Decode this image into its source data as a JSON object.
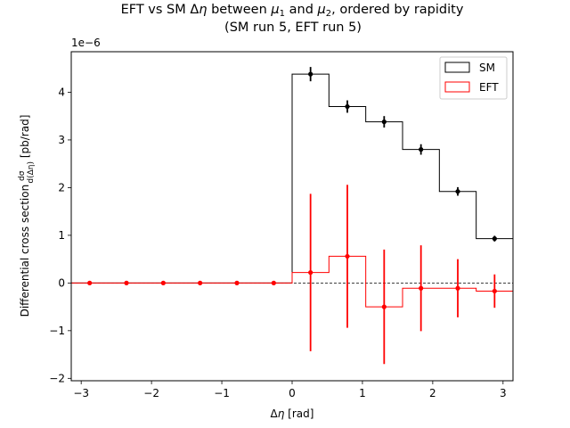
{
  "chart_data": {
    "type": "step-histogram",
    "title": "EFT vs SM Δη between μ1 and μ2, ordered by rapidity",
    "subtitle": "(SM run 5, EFT run 5)",
    "xlabel": "Δη [rad]",
    "ylabel": "Differential cross section dσ/d(Δη) [pb/rad]",
    "scale_label": "1e−6",
    "xlim": [
      -3.1416,
      3.1416
    ],
    "ylim": [
      -2.05e-06,
      4.85e-06
    ],
    "xticks": [
      -3,
      -2,
      -1,
      0,
      1,
      2,
      3
    ],
    "xtick_labels": [
      "−3",
      "−2",
      "−1",
      "0",
      "1",
      "2",
      "3"
    ],
    "yticks": [
      -2e-06,
      -1e-06,
      0,
      1e-06,
      2e-06,
      3e-06,
      4e-06
    ],
    "ytick_labels": [
      "−2",
      "−1",
      "0",
      "1",
      "2",
      "3",
      "4"
    ],
    "bin_edges": [
      -3.1416,
      -2.618,
      -2.0944,
      -1.5708,
      -1.0472,
      -0.5236,
      0,
      0.5236,
      1.0472,
      1.5708,
      2.0944,
      2.618,
      3.1416
    ],
    "legend": {
      "location": "top-right",
      "entries": [
        "SM",
        "EFT"
      ]
    },
    "series": [
      {
        "name": "SM",
        "color": "#000000",
        "values": [
          0,
          0,
          0,
          0,
          0,
          0,
          4.38e-06,
          3.7e-06,
          3.38e-06,
          2.8e-06,
          1.92e-06,
          9.3e-07
        ],
        "errors": [
          0,
          0,
          0,
          0,
          0,
          0,
          1.5e-07,
          1.3e-07,
          1.2e-07,
          1.1e-07,
          9e-08,
          6e-08
        ],
        "marker_from_bin": 6
      },
      {
        "name": "EFT",
        "color": "#ff0000",
        "values": [
          0,
          0,
          0,
          0,
          0,
          0,
          2.2e-07,
          5.6e-07,
          -5e-07,
          -1.1e-07,
          -1.1e-07,
          -1.7e-07
        ],
        "errors": [
          0,
          0,
          0,
          0,
          0,
          0,
          1.65e-06,
          1.5e-06,
          1.2e-06,
          9e-07,
          6.1e-07,
          3.5e-07
        ],
        "marker_from_bin": 0
      }
    ],
    "zero_line": {
      "style": "dashed",
      "color": "#000000"
    },
    "grid": false
  }
}
